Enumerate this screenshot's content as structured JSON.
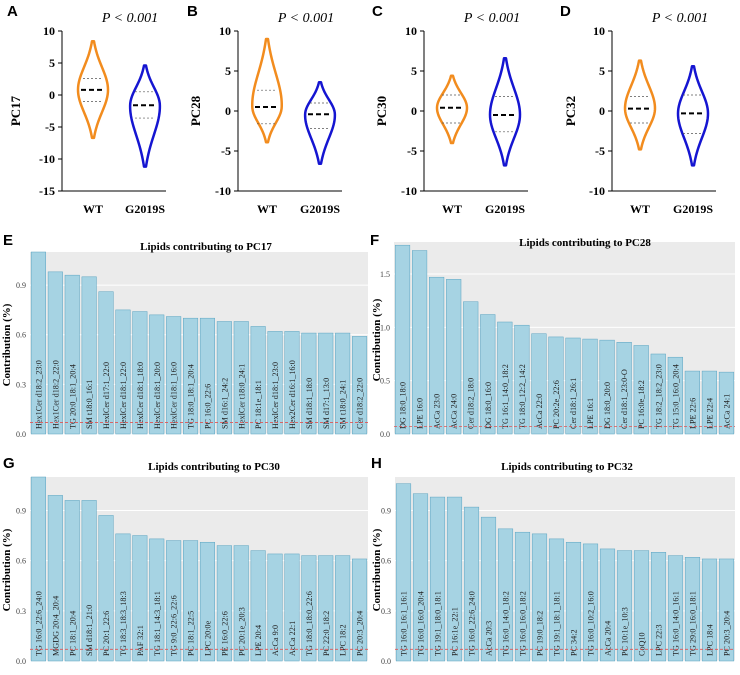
{
  "chart_data": [
    {
      "panel": "A",
      "type": "violin",
      "annotation": "P < 0.001",
      "ylabel": "PC17",
      "ylim": [
        -15,
        10
      ],
      "yticks": [
        "10",
        "5",
        "0",
        "-5",
        "-10",
        "-15"
      ],
      "categories": [
        "WT",
        "G2019S"
      ],
      "colors": [
        "#f28c1e",
        "#1515d1"
      ],
      "series": [
        {
          "name": "WT",
          "min": -6.7,
          "max": 8.4,
          "median": 0.8,
          "q1": -1.0,
          "q3": 2.6
        },
        {
          "name": "G2019S",
          "min": -11.2,
          "max": 4.6,
          "median": -1.6,
          "q1": -3.6,
          "q3": 0.5
        }
      ]
    },
    {
      "panel": "B",
      "type": "violin",
      "annotation": "P < 0.001",
      "ylabel": "PC28",
      "ylim": [
        -10,
        10
      ],
      "yticks": [
        "10",
        "5",
        "0",
        "-5",
        "-10"
      ],
      "categories": [
        "WT",
        "G2019S"
      ],
      "colors": [
        "#f28c1e",
        "#1515d1"
      ],
      "series": [
        {
          "name": "WT",
          "min": -3.9,
          "max": 9.0,
          "median": 0.5,
          "q1": -1.6,
          "q3": 2.6
        },
        {
          "name": "G2019S",
          "min": -6.6,
          "max": 3.6,
          "median": -0.4,
          "q1": -2.2,
          "q3": 1.0
        }
      ]
    },
    {
      "panel": "C",
      "type": "violin",
      "annotation": "P < 0.001",
      "ylabel": "PC30",
      "ylim": [
        -10,
        10
      ],
      "yticks": [
        "10",
        "5",
        "0",
        "-5",
        "-10"
      ],
      "categories": [
        "WT",
        "G2019S"
      ],
      "colors": [
        "#f28c1e",
        "#1515d1"
      ],
      "series": [
        {
          "name": "WT",
          "min": -4.0,
          "max": 4.4,
          "median": 0.4,
          "q1": -1.5,
          "q3": 2.0
        },
        {
          "name": "G2019S",
          "min": -6.8,
          "max": 6.6,
          "median": -0.5,
          "q1": -2.6,
          "q3": 1.8
        }
      ]
    },
    {
      "panel": "D",
      "type": "violin",
      "annotation": "P < 0.001",
      "ylabel": "PC32",
      "ylim": [
        -10,
        10
      ],
      "yticks": [
        "10",
        "5",
        "0",
        "-5",
        "-10"
      ],
      "categories": [
        "WT",
        "G2019S"
      ],
      "colors": [
        "#f28c1e",
        "#1515d1"
      ],
      "series": [
        {
          "name": "WT",
          "min": -4.8,
          "max": 6.3,
          "median": 0.3,
          "q1": -1.5,
          "q3": 1.8
        },
        {
          "name": "G2019S",
          "min": -6.8,
          "max": 5.6,
          "median": -0.3,
          "q1": -2.8,
          "q3": 2.0
        }
      ]
    },
    {
      "panel": "E",
      "type": "bar",
      "title": "Lipids contributing to PC17",
      "ylabel": "Contribution (%)",
      "ylim": [
        0,
        1.1
      ],
      "yticks": [
        0.0,
        0.3,
        0.6,
        0.9
      ],
      "ytick_labels": [
        "0.0",
        "0.3",
        "0.6",
        "0.9"
      ],
      "reference_line": 0.07,
      "categories": [
        "Hex1Cer d18:2_23:0",
        "Hex1Cer d18:2_22:0",
        "TG 20:0_18:1_20:4",
        "SM t18:0_16:1",
        "HexlCer d17:1_22:0",
        "HexlCer d18:1_22:0",
        "HexlCer d18:1_18:0",
        "HexlCer d18:1_20:0",
        "HexlCer d18:1_16:0",
        "TG 18:0_18:1_20:4",
        "PC 16:0_22:6",
        "SM d16:1_24:2",
        "HexlCer t18:0_24:1",
        "PC 18:1e_18:1",
        "HexlCer d18:1_23:0",
        "Hex2Cer d16:1_16:0",
        "SM d18:1_18:0",
        "SM d17:1_13:0",
        "SM t18:0_24:1",
        "Cer d18:2_22:0"
      ],
      "values": [
        1.1,
        0.98,
        0.96,
        0.95,
        0.86,
        0.75,
        0.74,
        0.72,
        0.71,
        0.7,
        0.7,
        0.68,
        0.68,
        0.65,
        0.62,
        0.62,
        0.61,
        0.61,
        0.61,
        0.59
      ]
    },
    {
      "panel": "F",
      "type": "bar",
      "title": "Lipids contributing to PC28",
      "ylabel": "Contribution (%)",
      "ylim": [
        0,
        1.8
      ],
      "yticks": [
        0.0,
        0.5,
        1.0,
        1.5
      ],
      "ytick_labels": [
        "0.0",
        "0.5",
        "1.0",
        "1.5"
      ],
      "reference_line": 0.07,
      "categories": [
        "DG 18:0_18:0",
        "LPE 16:0",
        "AcCa 23:0",
        "AcCa 24:0",
        "Cer d18:2_18:0",
        "DG 18:0_16:0",
        "TG 16:1_14:0_18:2",
        "TG 18:0_12:2_14:2",
        "AcCa 22:0",
        "PC 20:2e_22:6",
        "Cer d18:1_26:1",
        "LPE 16:1",
        "DG 18:0_20:0",
        "Cer d18:1_23:0-O",
        "PC 16:0e_18:2",
        "TG 18:2_18:2_23:0",
        "TG 15:0_16:0_20:4",
        "LPE 22:6",
        "LPE 22:4",
        "AcCa 24:1"
      ],
      "values": [
        1.77,
        1.72,
        1.47,
        1.45,
        1.24,
        1.12,
        1.05,
        1.02,
        0.94,
        0.91,
        0.9,
        0.89,
        0.88,
        0.86,
        0.83,
        0.75,
        0.72,
        0.59,
        0.59,
        0.58
      ]
    },
    {
      "panel": "G",
      "type": "bar",
      "title": "Lipids contributing to PC30",
      "ylabel": "Contribution (%)",
      "ylim": [
        0,
        1.1
      ],
      "yticks": [
        0.0,
        0.3,
        0.6,
        0.9
      ],
      "ytick_labels": [
        "0.0",
        "0.3",
        "0.6",
        "0.9"
      ],
      "reference_line": 0.07,
      "categories": [
        "TG 16:0_22:6_24:0",
        "MGDG 20:4_20:4",
        "PC 18:1_20:4",
        "SM d18:1_21:0",
        "PC 20:1_22:6",
        "TG 18:3_18:3_18:3",
        "PAF 32:1",
        "TG 18:1_14:3_18:1",
        "TG 9:0_22:6_22:6",
        "PC 18:1_22:5",
        "LPC 20:0e",
        "PE 16:0_22:6",
        "PC 20:1e_20:3",
        "LPE 20:4",
        "AcCa 9:0",
        "AcCa 22:1",
        "TG 18:0_18:0_22:6",
        "PC 22:0_18:2",
        "LPC 18:2",
        "PC 20:3_20:4"
      ],
      "values": [
        1.1,
        0.99,
        0.96,
        0.96,
        0.87,
        0.76,
        0.75,
        0.73,
        0.72,
        0.72,
        0.71,
        0.69,
        0.69,
        0.66,
        0.64,
        0.64,
        0.63,
        0.63,
        0.63,
        0.61
      ]
    },
    {
      "panel": "H",
      "type": "bar",
      "title": "Lipids contributing to PC32",
      "ylabel": "Contribution (%)",
      "ylim": [
        0,
        1.1
      ],
      "yticks": [
        0.0,
        0.3,
        0.6,
        0.9
      ],
      "ytick_labels": [
        "0.0",
        "0.3",
        "0.6",
        "0.9"
      ],
      "reference_line": 0.07,
      "categories": [
        "TG 16:0_16:1_16:1",
        "TG 16:0_16:0_20:4",
        "TG 19:1_18:0_18:1",
        "PC 16:1e_22:1",
        "TG 16:0_22:6_24:0",
        "AcCa 20:3",
        "TG 16:0_14:0_18:2",
        "TG 16:0_16:0_18:2",
        "PC 19:0_18:2",
        "TG 19:1_18:1_18:1",
        "PC 34:2",
        "TG 16:0_10:2_16:0",
        "AcCa 20:4",
        "PC 10:1e_10:3",
        "CoQ10",
        "LPC 22:3",
        "TG 16:0_14:0_16:1",
        "TG 29:0_16:0_18:1",
        "LPC 18:4",
        "PC 20:3_20:4"
      ],
      "values": [
        1.06,
        1.0,
        0.98,
        0.98,
        0.92,
        0.86,
        0.79,
        0.77,
        0.76,
        0.73,
        0.71,
        0.7,
        0.67,
        0.66,
        0.66,
        0.65,
        0.63,
        0.62,
        0.61,
        0.61
      ]
    }
  ]
}
